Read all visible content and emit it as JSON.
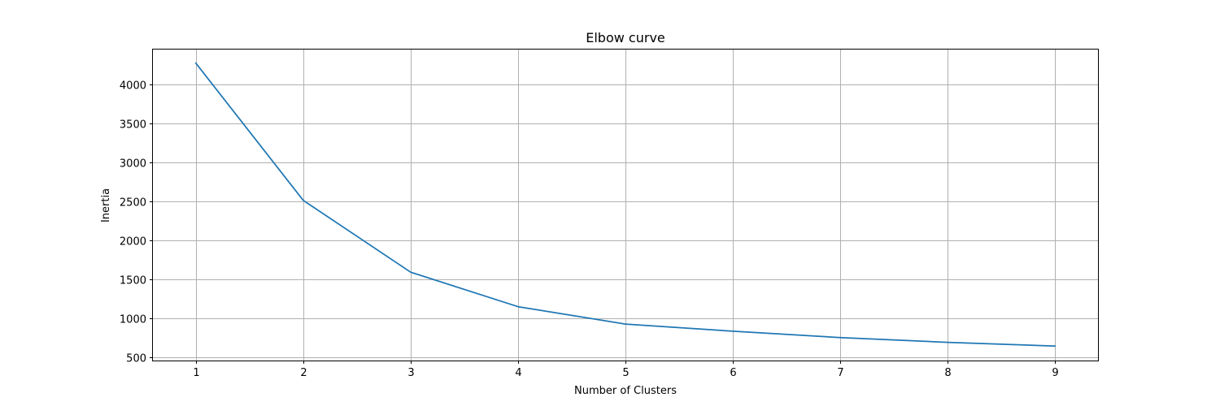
{
  "chart_data": {
    "type": "line",
    "title": "Elbow curve",
    "xlabel": "Number of Clusters",
    "ylabel": "Inertia",
    "x": [
      1,
      2,
      3,
      4,
      5,
      6,
      7,
      8,
      9
    ],
    "series": [
      {
        "values": [
          4275,
          2515,
          1595,
          1152,
          930,
          838,
          757,
          695,
          647
        ],
        "color": "#1f77b4"
      }
    ],
    "xlim": [
      0.6,
      9.4
    ],
    "ylim": [
      462,
      4450
    ],
    "xticks": [
      1,
      2,
      3,
      4,
      5,
      6,
      7,
      8,
      9
    ],
    "yticks": [
      500,
      1000,
      1500,
      2000,
      2500,
      3000,
      3500,
      4000
    ],
    "grid": true,
    "legend": "none"
  }
}
